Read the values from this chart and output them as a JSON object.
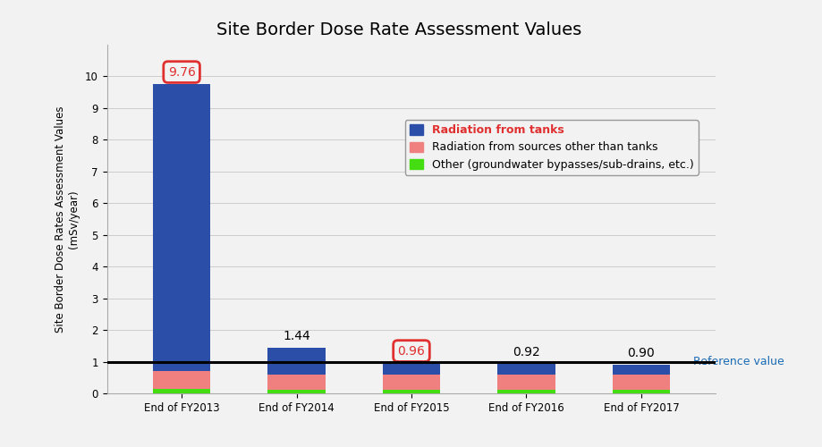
{
  "title": "Site Border Dose Rate Assessment Values",
  "ylabel": "Site Border Dose Rates Assessment Values\n(mSv/year)",
  "categories": [
    "End of FY2013",
    "End of FY2014",
    "End of FY2015",
    "End of FY2016",
    "End of FY2017"
  ],
  "totals": [
    9.76,
    1.44,
    0.96,
    0.92,
    0.9
  ],
  "blue_values": [
    9.06,
    0.84,
    0.36,
    0.32,
    0.3
  ],
  "red_values": [
    0.55,
    0.5,
    0.5,
    0.5,
    0.5
  ],
  "green_values": [
    0.15,
    0.1,
    0.1,
    0.1,
    0.1
  ],
  "blue_color": "#2b4fa8",
  "red_color": "#f08080",
  "green_color": "#44dd11",
  "reference_value": 1.0,
  "reference_label": "Reference value",
  "reference_color": "#1a6bb5",
  "ylim": [
    0,
    11
  ],
  "yticks": [
    0,
    1,
    2,
    3,
    4,
    5,
    6,
    7,
    8,
    9,
    10
  ],
  "circled_indices": [
    0,
    2
  ],
  "circle_color": "#e03030",
  "bg_color": "#f2f2f2",
  "legend_blue_label": "Radiation from tanks",
  "legend_red_label": "Radiation from sources other than tanks",
  "legend_green_label": "Other (groundwater bypasses/sub-drains, etc.)",
  "title_fontsize": 14,
  "label_fontsize": 8.5,
  "tick_fontsize": 8.5,
  "annot_fontsize": 10,
  "bar_width": 0.5
}
